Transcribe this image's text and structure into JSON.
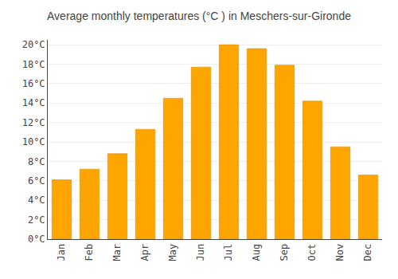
{
  "chart_data": {
    "type": "bar",
    "title": "Average monthly temperatures (°C ) in Meschers-sur-Gironde",
    "categories": [
      "Jan",
      "Feb",
      "Mar",
      "Apr",
      "May",
      "Jun",
      "Jul",
      "Aug",
      "Sep",
      "Oct",
      "Nov",
      "Dec"
    ],
    "values": [
      6.1,
      7.2,
      8.8,
      11.3,
      14.5,
      17.7,
      20.0,
      19.6,
      17.9,
      14.2,
      9.5,
      6.6
    ],
    "color": "#FFA500",
    "ylim": [
      0,
      20.5
    ],
    "yticks": [
      {
        "value": 0,
        "label": "0°C"
      },
      {
        "value": 2,
        "label": "2°C"
      },
      {
        "value": 4,
        "label": "4°C"
      },
      {
        "value": 6,
        "label": "6°C"
      },
      {
        "value": 8,
        "label": "8°C"
      },
      {
        "value": 10,
        "label": "10°C"
      },
      {
        "value": 12,
        "label": "12°C"
      },
      {
        "value": 14,
        "label": "14°C"
      },
      {
        "value": 16,
        "label": "16°C"
      },
      {
        "value": 18,
        "label": "18°C"
      },
      {
        "value": 20,
        "label": "20°C"
      }
    ],
    "grid": true
  }
}
